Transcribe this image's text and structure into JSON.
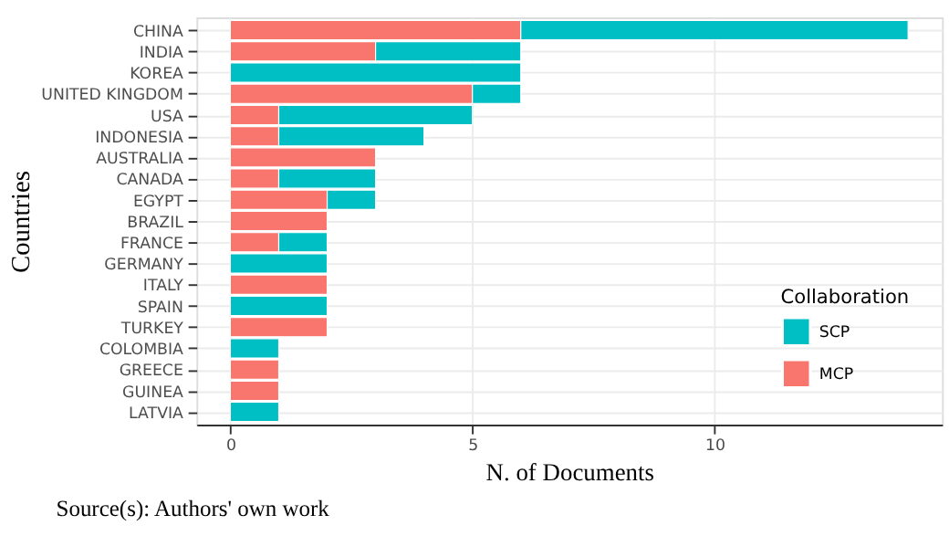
{
  "chart_data": {
    "type": "bar",
    "orientation": "horizontal",
    "stacked": true,
    "categories": [
      "CHINA",
      "INDIA",
      "KOREA",
      "UNITED KINGDOM",
      "USA",
      "INDONESIA",
      "AUSTRALIA",
      "CANADA",
      "EGYPT",
      "BRAZIL",
      "FRANCE",
      "GERMANY",
      "ITALY",
      "SPAIN",
      "TURKEY",
      "COLOMBIA",
      "GREECE",
      "GUINEA",
      "LATVIA"
    ],
    "series": [
      {
        "name": "MCP",
        "color": "#f8766d",
        "values": [
          6,
          3,
          0,
          5,
          1,
          1,
          3,
          1,
          2,
          2,
          1,
          0,
          2,
          0,
          2,
          0,
          1,
          1,
          0
        ]
      },
      {
        "name": "SCP",
        "color": "#00bfc4",
        "values": [
          8,
          3,
          6,
          1,
          4,
          3,
          0,
          2,
          1,
          0,
          1,
          2,
          0,
          2,
          0,
          1,
          0,
          0,
          1
        ]
      }
    ],
    "xlabel": "N. of Documents",
    "ylabel": "Countries",
    "legend_title": "Collaboration",
    "xlim": [
      -0.7,
      14.7
    ],
    "xticks": [
      0,
      5,
      10
    ],
    "grid": true,
    "legend": "bottom right",
    "annotations": [
      "Source(s): Authors' own work"
    ]
  }
}
